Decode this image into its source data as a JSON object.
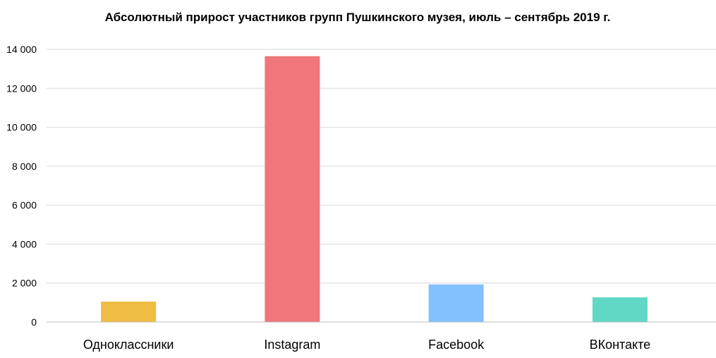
{
  "chart_data": {
    "type": "bar",
    "title": "Абсолютный прирост участников групп Пушкинского музея, июль – сентябрь 2019 г.",
    "categories": [
      "Одноклассники",
      "Instagram",
      "Facebook",
      "ВКонтакте"
    ],
    "values": [
      1050,
      13650,
      1930,
      1270
    ],
    "colors": [
      "#f0bd44",
      "#ef767a",
      "#82c1fb",
      "#5fd9c6"
    ],
    "ylim": [
      0,
      14000
    ],
    "yticks": [
      0,
      2000,
      4000,
      6000,
      8000,
      10000,
      12000,
      14000
    ],
    "ytick_labels": [
      "0",
      "2 000",
      "4 000",
      "6 000",
      "8 000",
      "10 000",
      "12 000",
      "14 000"
    ],
    "grid": true,
    "legend": "none"
  }
}
